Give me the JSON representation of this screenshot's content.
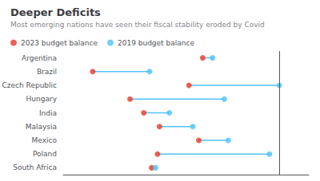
{
  "chart_data": {
    "type": "dumbbell",
    "title": "Deeper Deficits",
    "subtitle": "Most emerging nations have seen their fiscal stability eroded by Covid",
    "categories": [
      "Argentina",
      "Brazil",
      "Czech Republic",
      "Hungary",
      "India",
      "Malaysia",
      "Mexico",
      "Poland",
      "South Africa"
    ],
    "series": [
      {
        "name": "2023 budget balance",
        "color": "#e8392a",
        "values": [
          -2.9,
          -8.5,
          -3.6,
          -6.6,
          -5.9,
          -5.1,
          -3.1,
          -5.2,
          -5.5
        ]
      },
      {
        "name": "2019 budget balance",
        "color": "#4fc3f7",
        "values": [
          -2.4,
          -5.6,
          1.0,
          -1.8,
          -4.6,
          -3.4,
          -1.6,
          0.5,
          -5.3
        ]
      }
    ],
    "xlim": [
      -10.0,
      2.5
    ],
    "vline": {
      "x": 1.0,
      "color": "#555555"
    },
    "grid": false,
    "legend": "upper left",
    "tick_labels": "y"
  }
}
